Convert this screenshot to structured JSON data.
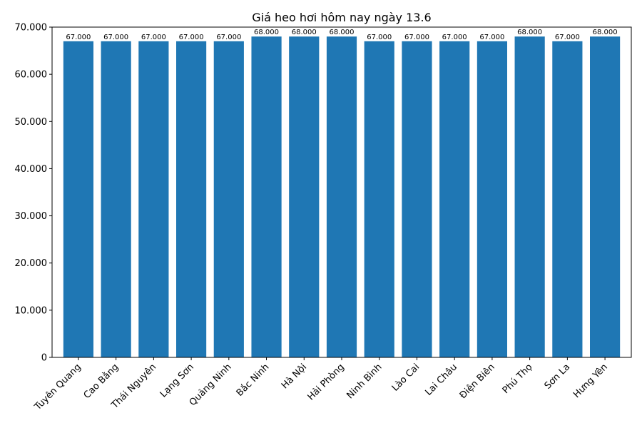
{
  "chart_data": {
    "type": "bar",
    "title": "Giá heo hơi hôm nay ngày 13.6",
    "xlabel": "",
    "ylabel": "",
    "categories": [
      "Tuyên Quang",
      "Cao Bằng",
      "Thái Nguyên",
      "Lạng Sơn",
      "Quảng Ninh",
      "Bắc Ninh",
      "Hà Nội",
      "Hải Phòng",
      "Ninh Bình",
      "Lào Cai",
      "Lai Châu",
      "Điện Biên",
      "Phú Thọ",
      "Sơn La",
      "Hưng Yên"
    ],
    "values": [
      67000,
      67000,
      67000,
      67000,
      67000,
      68000,
      68000,
      68000,
      67000,
      67000,
      67000,
      67000,
      68000,
      67000,
      68000
    ],
    "data_labels": [
      "67.000",
      "67.000",
      "67.000",
      "67.000",
      "67.000",
      "68.000",
      "68.000",
      "68.000",
      "67.000",
      "67.000",
      "67.000",
      "67.000",
      "68.000",
      "67.000",
      "68.000"
    ],
    "ylim": [
      0,
      70000
    ],
    "yticks": [
      0,
      10000,
      20000,
      30000,
      40000,
      50000,
      60000,
      70000
    ],
    "ytick_labels": [
      "0",
      "10.000",
      "20.000",
      "30.000",
      "40.000",
      "50.000",
      "60.000",
      "70.000"
    ],
    "bar_color": "#1f77b4",
    "grid": false,
    "legend": "none"
  }
}
